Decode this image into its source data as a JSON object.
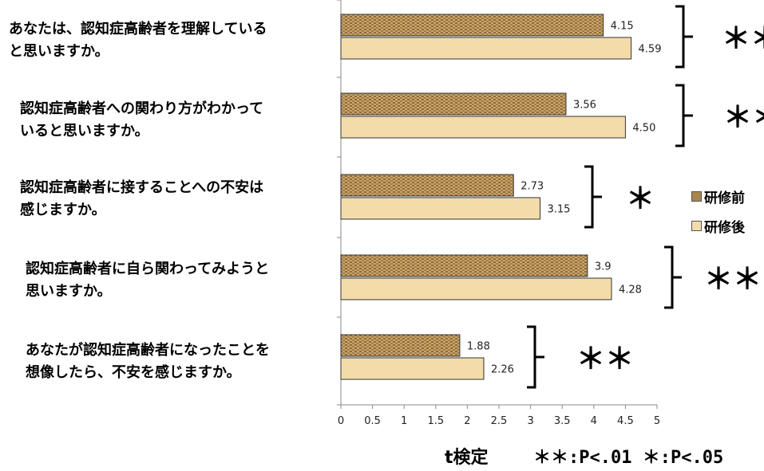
{
  "chart_data": {
    "type": "bar",
    "orientation": "horizontal",
    "categories": [
      [
        "あなたは、認知症高齢者を理解している",
        "と思いますか。"
      ],
      [
        "認知症高齢者への関わり方がわかって",
        "いると思いますか。"
      ],
      [
        "認知症高齢者に接することへの不安は",
        "感じますか。"
      ],
      [
        "認知症高齢者に自ら関わってみようと",
        "思いますか。"
      ],
      [
        "あなたが認知症高齢者になったことを",
        "想像したら、不安を感じますか。"
      ]
    ],
    "series": [
      {
        "name": "研修前",
        "values": [
          4.15,
          3.56,
          2.73,
          3.9,
          1.88
        ],
        "labels": [
          "4.15",
          "3.56",
          "2.73",
          "3.9",
          "1.88"
        ],
        "color": "#b08a50"
      },
      {
        "name": "研修後",
        "values": [
          4.59,
          4.5,
          3.15,
          4.28,
          2.26
        ],
        "labels": [
          "4.59",
          "4.50",
          "3.15",
          "4.28",
          "2.26"
        ],
        "color": "#f3dcaa"
      }
    ],
    "xlim": [
      0,
      5
    ],
    "xticks": [
      "0",
      "0.5",
      "1",
      "1.5",
      "2",
      "2.5",
      "3",
      "3.5",
      "4",
      "4.5",
      "5"
    ],
    "xtick_values": [
      0,
      0.5,
      1,
      1.5,
      2,
      2.5,
      3,
      3.5,
      4,
      4.5,
      5
    ],
    "significance": [
      "＊＊",
      "＊＊",
      "＊",
      "＊＊",
      "＊＊"
    ],
    "legend_position": "right",
    "grid": false
  },
  "footnote": {
    "test": "t検定",
    "text": "＊＊:P<.01 ＊:P<.05"
  }
}
